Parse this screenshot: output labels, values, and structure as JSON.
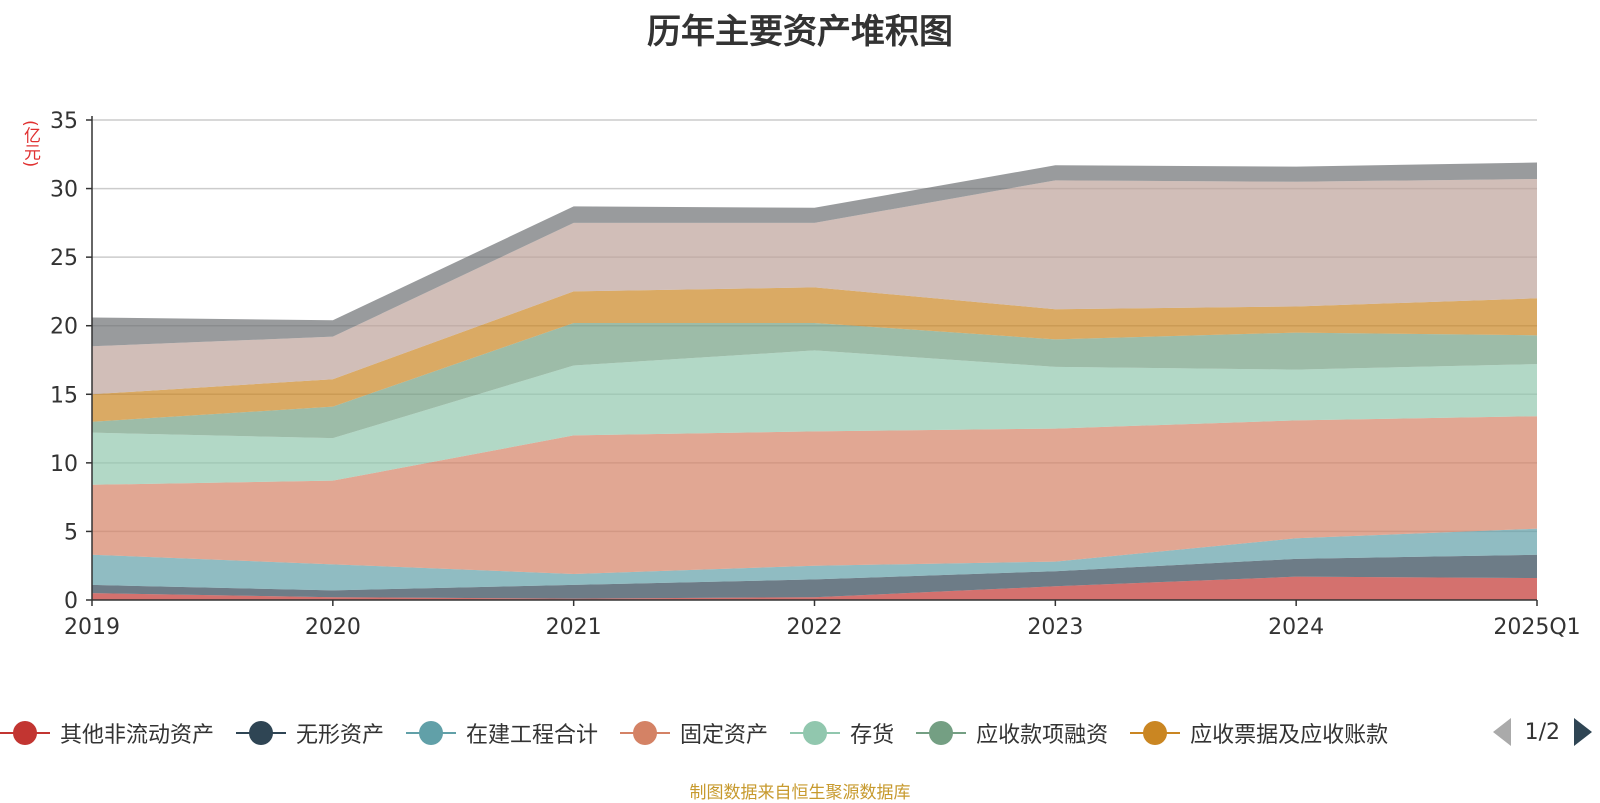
{
  "chart_data": {
    "type": "area",
    "title": "历年主要资产堆积图",
    "ylabel": "(亿元)",
    "ylim": [
      0,
      35
    ],
    "yticks": [
      0,
      5,
      10,
      15,
      20,
      25,
      30,
      35
    ],
    "grid": true,
    "stacked": true,
    "categories": [
      "2019",
      "2020",
      "2021",
      "2022",
      "2023",
      "2024",
      "2025Q1"
    ],
    "series": [
      {
        "name": "其他非流动资产",
        "color": "#c23531",
        "values": [
          0.5,
          0.2,
          0.1,
          0.2,
          1.0,
          1.7,
          1.6
        ]
      },
      {
        "name": "无形资产",
        "color": "#2f4554",
        "values": [
          0.6,
          0.5,
          1.0,
          1.3,
          1.1,
          1.3,
          1.7
        ]
      },
      {
        "name": "在建工程合计",
        "color": "#61a0a8",
        "values": [
          2.2,
          1.9,
          0.8,
          1.0,
          0.7,
          1.5,
          1.9
        ]
      },
      {
        "name": "固定资产",
        "color": "#d48265",
        "values": [
          5.1,
          6.1,
          10.1,
          9.8,
          9.7,
          8.6,
          8.2
        ]
      },
      {
        "name": "存货",
        "color": "#91c7ae",
        "values": [
          3.8,
          3.1,
          5.1,
          5.9,
          4.5,
          3.7,
          3.8
        ]
      },
      {
        "name": "应收款项融资",
        "color": "#749f83",
        "values": [
          0.8,
          2.3,
          3.1,
          2.0,
          2.0,
          2.7,
          2.1
        ]
      },
      {
        "name": "应收票据及应收账款",
        "color": "#ca8622",
        "values": [
          2.0,
          2.0,
          2.3,
          2.6,
          2.2,
          1.9,
          2.7
        ]
      },
      {
        "name": "",
        "color": "#bda29a",
        "values": [
          3.5,
          3.1,
          5.0,
          4.7,
          9.4,
          9.1,
          8.7
        ]
      },
      {
        "name": "",
        "color": "#6e7074",
        "values": [
          2.1,
          1.2,
          1.2,
          1.1,
          1.1,
          1.1,
          1.2
        ]
      }
    ]
  },
  "legend": {
    "items": [
      {
        "label": "其他非流动资产",
        "color": "#c23531"
      },
      {
        "label": "无形资产",
        "color": "#2f4554"
      },
      {
        "label": "在建工程合计",
        "color": "#61a0a8"
      },
      {
        "label": "固定资产",
        "color": "#d48265"
      },
      {
        "label": "存货",
        "color": "#91c7ae"
      },
      {
        "label": "应收款项融资",
        "color": "#749f83"
      },
      {
        "label": "应收票据及应收账款",
        "color": "#ca8622"
      }
    ],
    "page_indicator": "1/2"
  },
  "footer": "制图数据来自恒生聚源数据库"
}
